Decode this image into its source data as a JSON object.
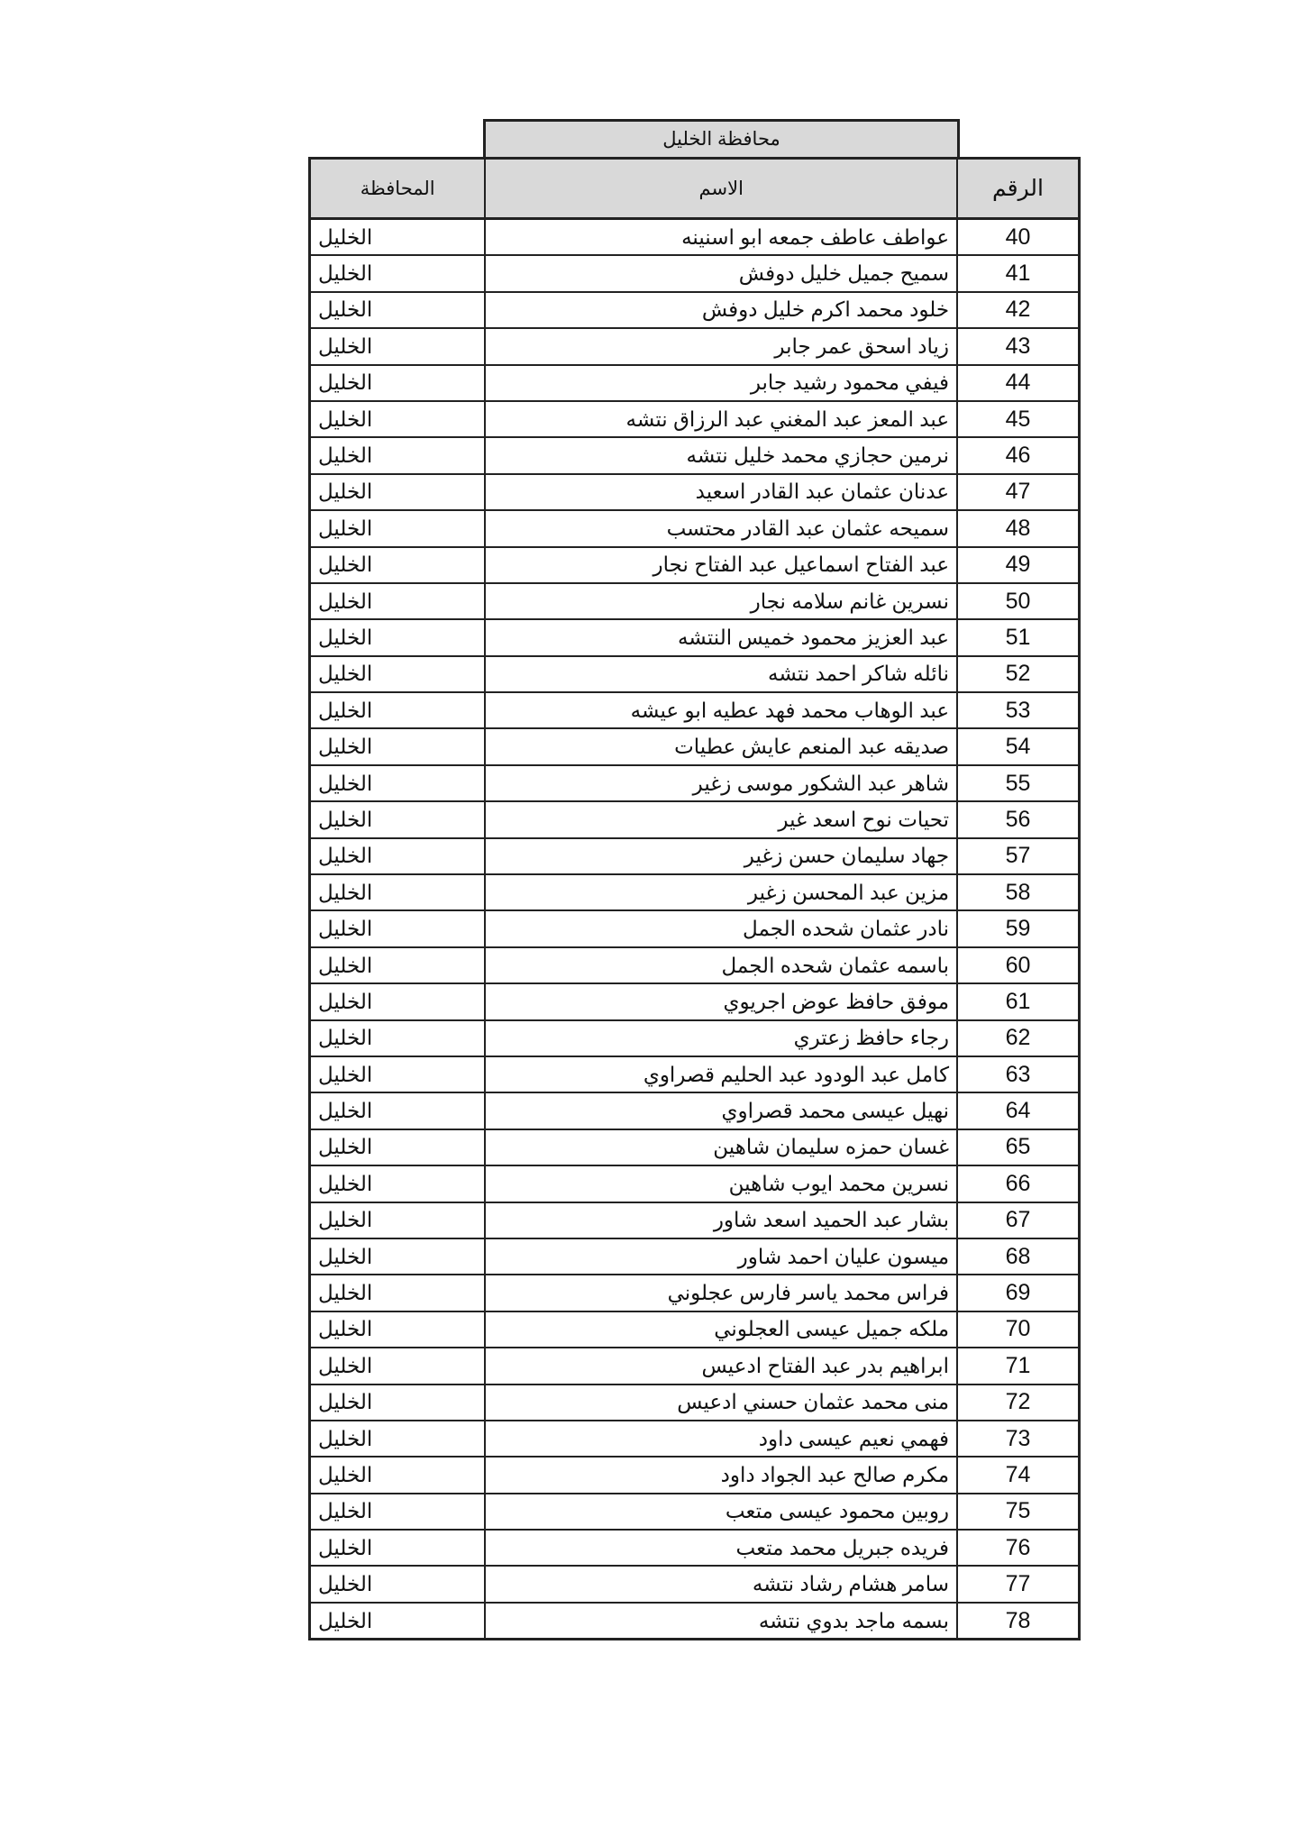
{
  "title": "محافظة الخليل",
  "headers": {
    "number": "الرقم",
    "name": "الاسم",
    "governorate": "المحافظة"
  },
  "rows": [
    {
      "number": "40",
      "name": "عواطف عاطف جمعه ابو اسنينه",
      "governorate": "الخليل"
    },
    {
      "number": "41",
      "name": "سميح جميل خليل دوفش",
      "governorate": "الخليل"
    },
    {
      "number": "42",
      "name": "خلود محمد اكرم خليل دوفش",
      "governorate": "الخليل"
    },
    {
      "number": "43",
      "name": "زياد اسحق عمر جابر",
      "governorate": "الخليل"
    },
    {
      "number": "44",
      "name": "فيفي محمود رشيد جابر",
      "governorate": "الخليل"
    },
    {
      "number": "45",
      "name": "عبد المعز عبد المغني عبد الرزاق نتشه",
      "governorate": "الخليل"
    },
    {
      "number": "46",
      "name": "نرمين حجازي محمد خليل نتشه",
      "governorate": "الخليل"
    },
    {
      "number": "47",
      "name": "عدنان عثمان عبد القادر اسعيد",
      "governorate": "الخليل"
    },
    {
      "number": "48",
      "name": "سميحه عثمان عبد القادر محتسب",
      "governorate": "الخليل"
    },
    {
      "number": "49",
      "name": "عبد الفتاح اسماعيل عبد الفتاح نجار",
      "governorate": "الخليل"
    },
    {
      "number": "50",
      "name": "نسرين غانم سلامه نجار",
      "governorate": "الخليل"
    },
    {
      "number": "51",
      "name": "عبد العزيز محمود خميس النتشه",
      "governorate": "الخليل"
    },
    {
      "number": "52",
      "name": "نائله شاكر احمد نتشه",
      "governorate": "الخليل"
    },
    {
      "number": "53",
      "name": "عبد الوهاب محمد فهد عطيه ابو عيشه",
      "governorate": "الخليل"
    },
    {
      "number": "54",
      "name": "صديقه عبد المنعم عايش عطيات",
      "governorate": "الخليل"
    },
    {
      "number": "55",
      "name": "شاهر عبد الشكور موسى زغير",
      "governorate": "الخليل"
    },
    {
      "number": "56",
      "name": "تحيات نوح اسعد غير",
      "governorate": "الخليل"
    },
    {
      "number": "57",
      "name": "جهاد سليمان حسن زغير",
      "governorate": "الخليل"
    },
    {
      "number": "58",
      "name": "مزين عبد المحسن زغير",
      "governorate": "الخليل"
    },
    {
      "number": "59",
      "name": "نادر عثمان شحده الجمل",
      "governorate": "الخليل"
    },
    {
      "number": "60",
      "name": "باسمه عثمان شحده الجمل",
      "governorate": "الخليل"
    },
    {
      "number": "61",
      "name": "موفق حافظ عوض اجريوي",
      "governorate": "الخليل"
    },
    {
      "number": "62",
      "name": "رجاء حافظ زعتري",
      "governorate": "الخليل"
    },
    {
      "number": "63",
      "name": "كامل عبد الودود عبد الحليم قصراوي",
      "governorate": "الخليل"
    },
    {
      "number": "64",
      "name": "نهيل عيسى محمد قصراوي",
      "governorate": "الخليل"
    },
    {
      "number": "65",
      "name": "غسان حمزه سليمان شاهين",
      "governorate": "الخليل"
    },
    {
      "number": "66",
      "name": "نسرين محمد ايوب شاهين",
      "governorate": "الخليل"
    },
    {
      "number": "67",
      "name": "بشار عبد الحميد اسعد شاور",
      "governorate": "الخليل"
    },
    {
      "number": "68",
      "name": "ميسون عليان احمد شاور",
      "governorate": "الخليل"
    },
    {
      "number": "69",
      "name": "فراس محمد ياسر فارس عجلوني",
      "governorate": "الخليل"
    },
    {
      "number": "70",
      "name": "ملكه جميل عيسى العجلوني",
      "governorate": "الخليل"
    },
    {
      "number": "71",
      "name": "ابراهيم بدر عبد الفتاح ادعيس",
      "governorate": "الخليل"
    },
    {
      "number": "72",
      "name": "منى محمد عثمان حسني ادعيس",
      "governorate": "الخليل"
    },
    {
      "number": "73",
      "name": "فهمي نعيم عيسى داود",
      "governorate": "الخليل"
    },
    {
      "number": "74",
      "name": "مكرم صالح عبد الجواد داود",
      "governorate": "الخليل"
    },
    {
      "number": "75",
      "name": "روبين محمود عيسى متعب",
      "governorate": "الخليل"
    },
    {
      "number": "76",
      "name": "فريده جبريل محمد متعب",
      "governorate": "الخليل"
    },
    {
      "number": "77",
      "name": "سامر هشام رشاد نتشه",
      "governorate": "الخليل"
    },
    {
      "number": "78",
      "name": "بسمه ماجد بدوي نتشه",
      "governorate": "الخليل"
    }
  ]
}
